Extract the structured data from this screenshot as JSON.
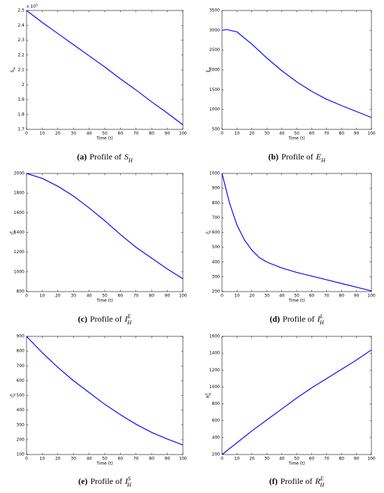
{
  "chart_data": [
    {
      "type": "line",
      "x": [
        0,
        10,
        20,
        30,
        40,
        50,
        60,
        70,
        80,
        90,
        100
      ],
      "series": [
        {
          "color": "#0000ff",
          "values": [
            2.5,
            2.42,
            2.345,
            2.27,
            2.195,
            2.12,
            2.04,
            1.965,
            1.885,
            1.81,
            1.73
          ]
        }
      ],
      "xlim": [
        0,
        100
      ],
      "xticks": [
        0,
        10,
        20,
        30,
        40,
        50,
        60,
        70,
        80,
        90,
        100
      ],
      "ylim": [
        1.7,
        2.5
      ],
      "yticks": [
        1.7,
        1.8,
        1.9,
        2,
        2.1,
        2.2,
        2.3,
        2.4,
        2.5
      ],
      "y_multiplier": {
        "base": "x 10",
        "exp": "5"
      },
      "xlabel": "Time (t)",
      "caption": {
        "tag": "(a)",
        "text": "Profile of",
        "sym": "S",
        "sub": "H"
      }
    },
    {
      "type": "line",
      "x": [
        0,
        3,
        10,
        20,
        30,
        40,
        50,
        60,
        70,
        80,
        90,
        100
      ],
      "series": [
        {
          "color": "#0000ff",
          "values": [
            3000,
            3020,
            2960,
            2650,
            2300,
            1980,
            1700,
            1460,
            1260,
            1100,
            950,
            800
          ]
        }
      ],
      "xlim": [
        0,
        100
      ],
      "xticks": [
        0,
        10,
        20,
        30,
        40,
        50,
        60,
        70,
        80,
        90,
        100
      ],
      "ylim": [
        500,
        3500
      ],
      "yticks": [
        500,
        1000,
        1500,
        2000,
        2500,
        3000,
        3500
      ],
      "xlabel": "Time (t)",
      "caption": {
        "tag": "(b)",
        "text": "Profile of",
        "sym": "E",
        "sub": "H"
      }
    },
    {
      "type": "line",
      "x": [
        0,
        10,
        20,
        30,
        40,
        50,
        60,
        70,
        80,
        90,
        100
      ],
      "series": [
        {
          "color": "#0000ff",
          "values": [
            2000,
            1950,
            1870,
            1770,
            1650,
            1520,
            1380,
            1250,
            1140,
            1030,
            930
          ]
        }
      ],
      "xlim": [
        0,
        100
      ],
      "xticks": [
        0,
        10,
        20,
        30,
        40,
        50,
        60,
        70,
        80,
        90,
        100
      ],
      "ylim": [
        800,
        2000
      ],
      "yticks": [
        800,
        1000,
        1200,
        1400,
        1600,
        1800,
        2000
      ],
      "xlabel": "Time (t)",
      "caption": {
        "tag": "(c)",
        "text": "Profile of",
        "sym": "I",
        "sub": "H",
        "sup": "E"
      }
    },
    {
      "type": "line",
      "x": [
        0,
        5,
        10,
        15,
        20,
        25,
        30,
        40,
        50,
        60,
        70,
        80,
        90,
        100
      ],
      "series": [
        {
          "color": "#0000ff",
          "values": [
            1000,
            800,
            650,
            550,
            480,
            430,
            400,
            360,
            330,
            305,
            280,
            255,
            230,
            205
          ]
        }
      ],
      "xlim": [
        0,
        100
      ],
      "xticks": [
        0,
        10,
        20,
        30,
        40,
        50,
        60,
        70,
        80,
        90,
        100
      ],
      "ylim": [
        200,
        1000
      ],
      "yticks": [
        200,
        300,
        400,
        500,
        600,
        700,
        800,
        900,
        1000
      ],
      "xlabel": "Time (t)",
      "caption": {
        "tag": "(d)",
        "text": "Profile of",
        "sym": "I",
        "sub": "H",
        "sup": "L"
      }
    },
    {
      "type": "line",
      "x": [
        0,
        10,
        20,
        30,
        40,
        50,
        60,
        70,
        80,
        90,
        100
      ],
      "series": [
        {
          "color": "#0000ff",
          "values": [
            900,
            790,
            690,
            600,
            520,
            440,
            370,
            305,
            250,
            205,
            165
          ]
        }
      ],
      "xlim": [
        0,
        100
      ],
      "xticks": [
        0,
        10,
        20,
        30,
        40,
        50,
        60,
        70,
        80,
        90,
        100
      ],
      "ylim": [
        100,
        900
      ],
      "yticks": [
        100,
        200,
        300,
        400,
        500,
        600,
        700,
        800,
        900
      ],
      "xlabel": "Time (t)",
      "caption": {
        "tag": "(e)",
        "text": "Profile of",
        "sym": "I",
        "sub": "H",
        "sup": "S"
      }
    },
    {
      "type": "line",
      "x": [
        0,
        10,
        20,
        30,
        40,
        50,
        60,
        70,
        80,
        90,
        100
      ],
      "series": [
        {
          "color": "#0000ff",
          "values": [
            200,
            340,
            480,
            610,
            740,
            870,
            990,
            1100,
            1210,
            1320,
            1440
          ]
        }
      ],
      "xlim": [
        0,
        100
      ],
      "xticks": [
        0,
        10,
        20,
        30,
        40,
        50,
        60,
        70,
        80,
        90,
        100
      ],
      "ylim": [
        200,
        1600
      ],
      "yticks": [
        200,
        400,
        600,
        800,
        1000,
        1200,
        1400,
        1600
      ],
      "xlabel": "Time (t)",
      "caption": {
        "tag": "(f)",
        "text": "Profile of",
        "sym": "R",
        "sub": "H",
        "sup": "E"
      }
    }
  ]
}
